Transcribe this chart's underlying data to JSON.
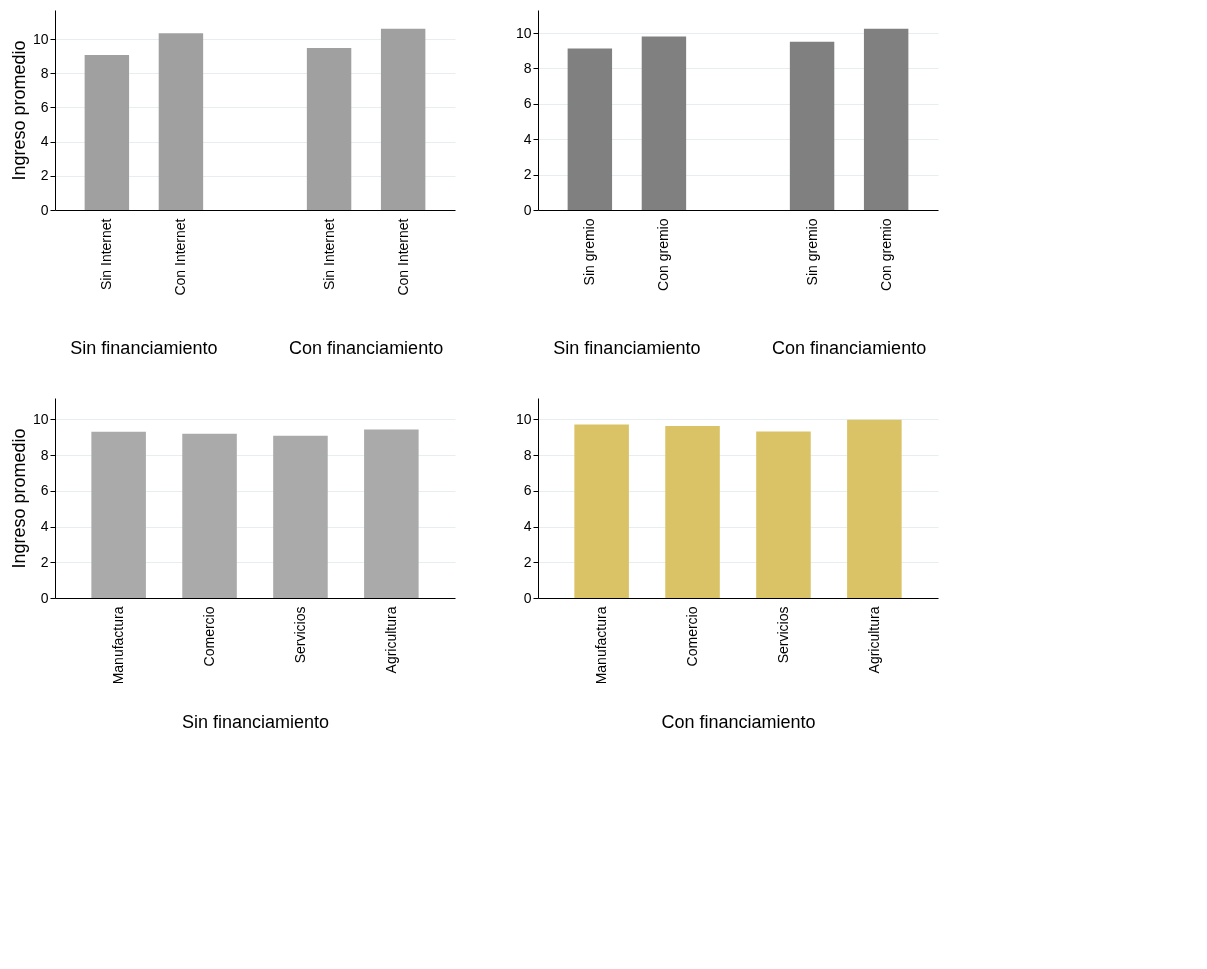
{
  "chart_data": [
    {
      "type": "bar",
      "categories": [
        "Sin Internet",
        "Con Internet",
        "Sin Internet",
        "Con Internet"
      ],
      "values": [
        9.07,
        10.34,
        9.47,
        10.61
      ],
      "color": "#a0a0a0",
      "ylabel": "Ingreso promedio",
      "ylim": [
        0,
        11.7
      ],
      "yticks": [
        0,
        2,
        4,
        6,
        8,
        10
      ],
      "grid": "y",
      "annotations": [
        "Sin financiamiento",
        "Con financiamiento"
      ]
    },
    {
      "type": "bar",
      "categories": [
        "Sin gremio",
        "Con gremio",
        "Sin gremio",
        "Con gremio"
      ],
      "values": [
        9.13,
        9.8,
        9.5,
        10.24
      ],
      "color": "#808080",
      "ylim": [
        0,
        11.3
      ],
      "yticks": [
        0,
        2,
        4,
        6,
        8,
        10
      ],
      "grid": "y",
      "annotations": [
        "Sin financiamiento",
        "Con financiamiento"
      ]
    },
    {
      "type": "bar",
      "categories": [
        "Manufactura",
        "Comercio",
        "Servicios",
        "Agricultura"
      ],
      "values": [
        9.31,
        9.2,
        9.09,
        9.44
      ],
      "color": "#aaaaaa",
      "ylabel": "Ingreso promedio",
      "xlabel": "Sin financiamiento",
      "ylim": [
        0,
        11.2
      ],
      "yticks": [
        0,
        2,
        4,
        6,
        8,
        10
      ],
      "grid": "y"
    },
    {
      "type": "bar",
      "categories": [
        "Manufactura",
        "Comercio",
        "Servicios",
        "Agricultura"
      ],
      "values": [
        9.71,
        9.63,
        9.33,
        9.98
      ],
      "color": "#dac366",
      "xlabel": "Con financiamiento",
      "ylim": [
        0,
        11.2
      ],
      "yticks": [
        0,
        2,
        4,
        6,
        8,
        10
      ],
      "grid": "y"
    }
  ]
}
